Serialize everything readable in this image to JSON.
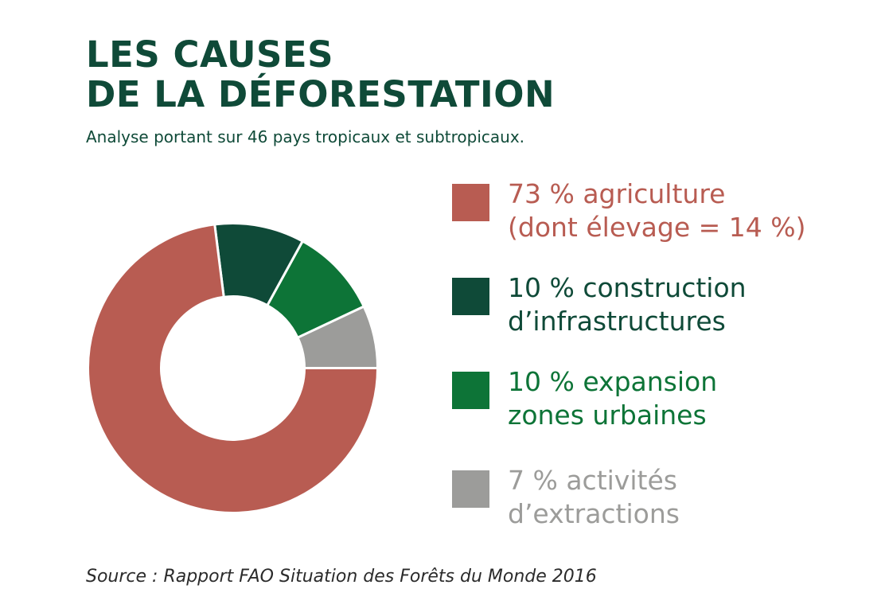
{
  "title": {
    "line1": "LES CAUSES",
    "line2": "DE LA DÉFORESTATION"
  },
  "subtitle": "Analyse portant sur 46 pays tropicaux et subtropicaux.",
  "source": "Source : Rapport FAO Situation des Forêts du Monde 2016",
  "legend": [
    {
      "line1": "73 % agriculture",
      "line2": "(dont élevage = 14 %)",
      "color": "#b85c52"
    },
    {
      "line1": "10 % construction",
      "line2": "d’infrastructures",
      "color": "#0f4a38"
    },
    {
      "line1": "10 % expansion",
      "line2": "zones urbaines",
      "color": "#0d7437"
    },
    {
      "line1": "7 % activités",
      "line2": "d’extractions",
      "color": "#9c9c9a"
    }
  ],
  "chart_data": {
    "type": "pie",
    "style": "donut",
    "categories": [
      "agriculture",
      "construction d’infrastructures",
      "expansion zones urbaines",
      "activités d’extractions"
    ],
    "values": [
      73,
      10,
      10,
      7
    ],
    "unit": "%",
    "colors": [
      "#b85c52",
      "#0f4a38",
      "#0d7437",
      "#9c9c9a"
    ],
    "start_angle_deg": 0,
    "direction": "clockwise from east, agriculture last",
    "legend_position": "right"
  }
}
